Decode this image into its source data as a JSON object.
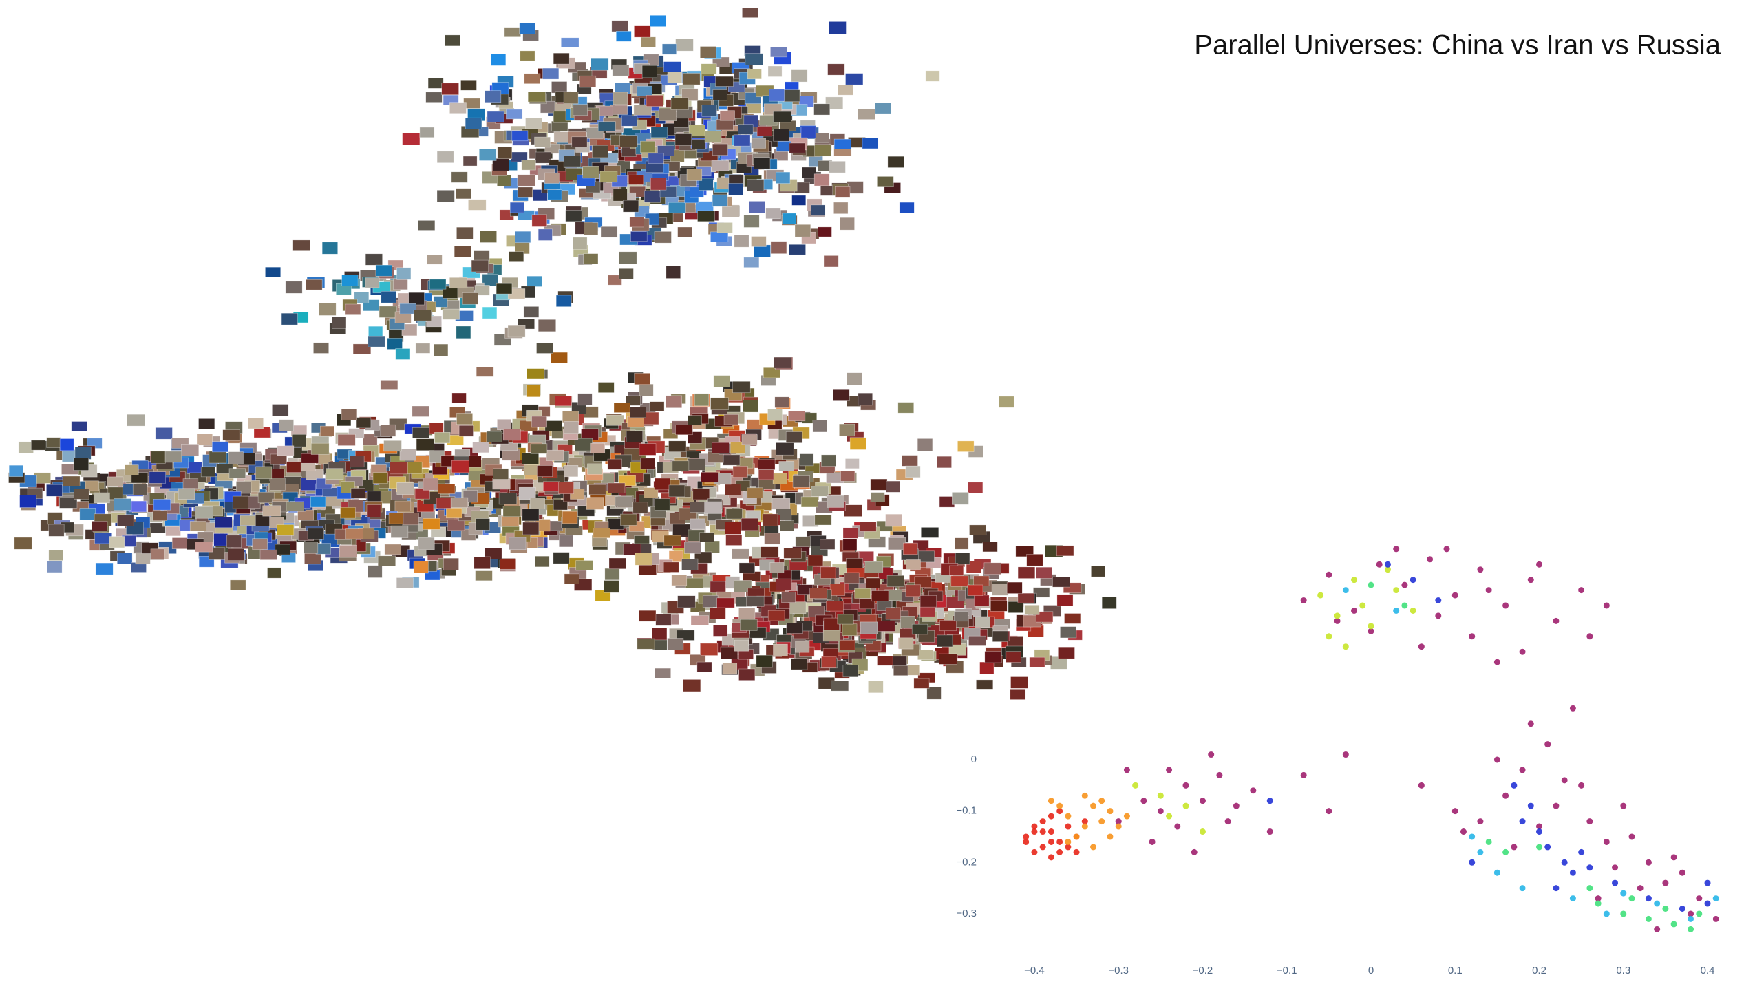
{
  "title": "Parallel Universes: China vs Iran vs Russia",
  "chart_data": {
    "type": "scatter",
    "xlim": [
      -0.42,
      0.43
    ],
    "ylim": [
      -0.35,
      0.45
    ],
    "xticks": [
      {
        "value": -0.4,
        "label": "−0.4"
      },
      {
        "value": -0.3,
        "label": "−0.3"
      },
      {
        "value": -0.2,
        "label": "−0.2"
      },
      {
        "value": -0.1,
        "label": "−0.1"
      },
      0,
      0.1,
      0.2,
      0.3,
      0.4
    ],
    "yticks": [
      0,
      {
        "value": -0.1,
        "label": "−0.1"
      },
      {
        "value": -0.2,
        "label": "−0.2"
      },
      {
        "value": -0.3,
        "label": "−0.3"
      }
    ],
    "series": [
      {
        "color": "#a0206e",
        "x": [
          -0.08,
          -0.05,
          -0.02,
          0.01,
          0.04,
          0.07,
          0.1,
          0.13,
          0.16,
          0.19,
          0.22,
          0.25,
          0.28,
          0.0,
          0.06,
          0.12,
          0.18,
          0.09,
          0.03,
          0.15,
          0.2,
          0.26,
          -0.04,
          0.08,
          0.14,
          -0.3,
          -0.27,
          -0.25,
          -0.22,
          -0.2,
          -0.18,
          -0.16,
          -0.23,
          -0.26,
          -0.29,
          -0.21,
          -0.17,
          -0.24,
          -0.19,
          -0.14,
          -0.12,
          -0.08,
          -0.05,
          -0.03,
          0.06,
          0.1,
          0.13,
          0.16,
          0.18,
          0.21,
          0.23,
          0.26,
          0.28,
          0.31,
          0.33,
          0.35,
          0.37,
          0.39,
          0.41,
          0.15,
          0.19,
          0.22,
          0.25,
          0.29,
          0.32,
          0.36,
          0.2,
          0.24,
          0.17,
          0.11,
          0.27,
          0.34,
          0.3,
          0.38
        ],
        "values": [
          0.31,
          0.36,
          0.29,
          0.38,
          0.34,
          0.39,
          0.32,
          0.37,
          0.3,
          0.35,
          0.27,
          0.33,
          0.3,
          0.25,
          0.22,
          0.24,
          0.21,
          0.41,
          0.41,
          0.19,
          0.38,
          0.24,
          0.27,
          0.28,
          0.33,
          -0.12,
          -0.08,
          -0.1,
          -0.05,
          -0.08,
          -0.03,
          -0.09,
          -0.13,
          -0.16,
          -0.02,
          -0.18,
          -0.12,
          -0.02,
          0.01,
          -0.06,
          -0.14,
          -0.03,
          -0.1,
          0.01,
          -0.05,
          -0.1,
          -0.12,
          -0.07,
          -0.02,
          0.03,
          -0.04,
          -0.12,
          -0.16,
          -0.15,
          -0.2,
          -0.24,
          -0.22,
          -0.27,
          -0.31,
          0.0,
          0.07,
          -0.09,
          -0.05,
          -0.21,
          -0.25,
          -0.19,
          -0.13,
          0.1,
          -0.17,
          -0.14,
          -0.27,
          -0.33,
          -0.09,
          -0.3
        ]
      },
      {
        "color": "#e8261a",
        "x": [
          -0.41,
          -0.4,
          -0.39,
          -0.38,
          -0.37,
          -0.4,
          -0.38,
          -0.36,
          -0.39,
          -0.37,
          -0.35,
          -0.41,
          -0.38,
          -0.36,
          -0.39,
          -0.34,
          -0.37,
          -0.4,
          -0.35,
          -0.38
        ],
        "values": [
          -0.15,
          -0.13,
          -0.17,
          -0.14,
          -0.16,
          -0.18,
          -0.19,
          -0.13,
          -0.12,
          -0.18,
          -0.15,
          -0.16,
          -0.11,
          -0.17,
          -0.14,
          -0.12,
          -0.1,
          -0.14,
          -0.18,
          -0.16
        ]
      },
      {
        "color": "#f7941d",
        "x": [
          -0.36,
          -0.34,
          -0.33,
          -0.35,
          -0.32,
          -0.31,
          -0.37,
          -0.33,
          -0.3,
          -0.34,
          -0.36,
          -0.29,
          -0.32,
          -0.38,
          -0.31
        ],
        "values": [
          -0.11,
          -0.13,
          -0.09,
          -0.15,
          -0.12,
          -0.1,
          -0.09,
          -0.17,
          -0.13,
          -0.07,
          -0.16,
          -0.11,
          -0.08,
          -0.08,
          -0.15
        ]
      },
      {
        "color": "#c8e62a",
        "x": [
          -0.06,
          -0.04,
          -0.02,
          0.0,
          0.03,
          -0.05,
          -0.01,
          0.02,
          0.05,
          -0.03,
          -0.25,
          -0.22,
          -0.28,
          -0.2,
          -0.24
        ],
        "values": [
          0.32,
          0.28,
          0.35,
          0.26,
          0.33,
          0.24,
          0.3,
          0.37,
          0.29,
          0.22,
          -0.07,
          -0.09,
          -0.05,
          -0.14,
          -0.11
        ]
      },
      {
        "color": "#3fe07a",
        "x": [
          0.16,
          0.2,
          0.27,
          0.3,
          0.33,
          0.36,
          0.38,
          0.31,
          0.26,
          0.14,
          0.35,
          0.39,
          0.0,
          0.04
        ],
        "values": [
          -0.18,
          -0.17,
          -0.28,
          -0.3,
          -0.31,
          -0.32,
          -0.33,
          -0.27,
          -0.25,
          -0.16,
          -0.29,
          -0.3,
          0.34,
          0.3
        ]
      },
      {
        "color": "#2433d6",
        "x": [
          0.18,
          0.21,
          0.23,
          0.2,
          0.24,
          0.26,
          0.19,
          0.22,
          0.29,
          0.33,
          0.37,
          0.4,
          0.17,
          0.25,
          0.05,
          0.08,
          -0.12,
          0.12,
          0.02,
          0.4
        ],
        "values": [
          -0.12,
          -0.17,
          -0.2,
          -0.14,
          -0.22,
          -0.21,
          -0.09,
          -0.25,
          -0.24,
          -0.27,
          -0.29,
          -0.28,
          -0.05,
          -0.18,
          0.35,
          0.31,
          -0.08,
          -0.2,
          0.38,
          -0.24
        ]
      },
      {
        "color": "#27b6e8",
        "x": [
          0.13,
          0.15,
          0.28,
          0.34,
          0.41,
          0.38,
          0.12,
          0.3,
          0.03,
          -0.03,
          0.18,
          0.24
        ],
        "values": [
          -0.18,
          -0.22,
          -0.3,
          -0.28,
          -0.27,
          -0.31,
          -0.15,
          -0.26,
          0.29,
          0.33,
          -0.25,
          -0.27
        ]
      }
    ]
  }
}
